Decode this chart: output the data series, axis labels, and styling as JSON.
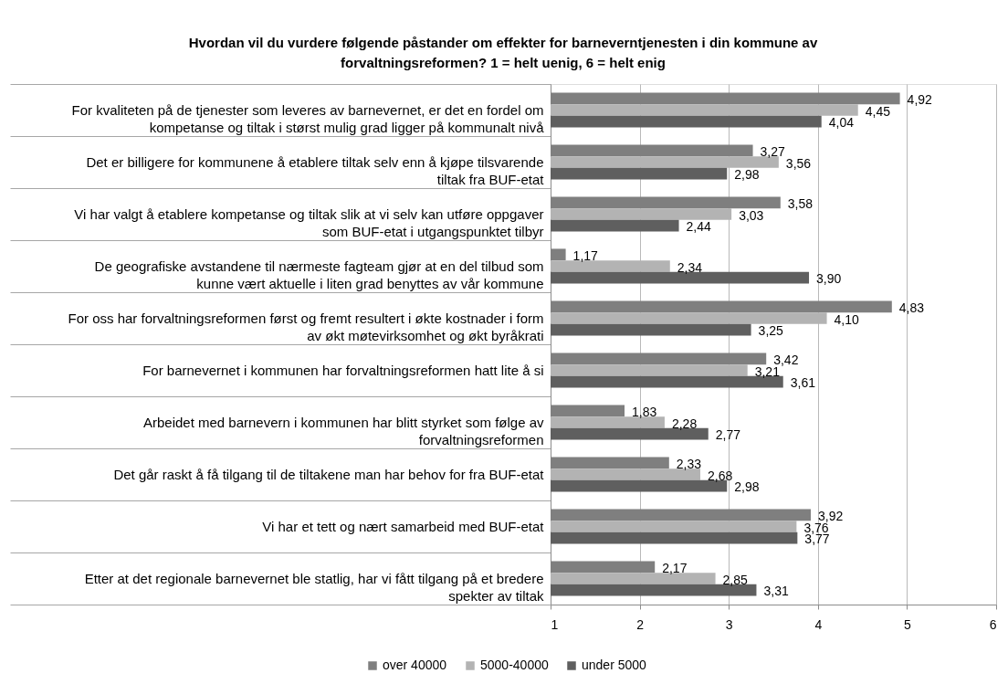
{
  "chart_data": {
    "type": "bar",
    "orientation": "horizontal",
    "title": "Hvordan vil du vurdere følgende påstander om effekter for barneverntjenesten i din kommune av forvaltningsreformen? 1 = helt uenig,  6 = helt enig",
    "categories": [
      "For kvaliteten på de tjenester som leveres av barnevernet, er det en fordel om kompetanse og tiltak i størst mulig grad ligger på kommunalt nivå",
      "Det er billigere for kommunene å etablere tiltak selv enn å kjøpe tilsvarende tiltak fra BUF-etat",
      "Vi har valgt å etablere kompetanse og tiltak slik at vi selv kan utføre oppgaver som BUF-etat i utgangspunktet tilbyr",
      "De geografiske avstandene til nærmeste fagteam gjør at en del tilbud som kunne vært aktuelle i liten grad benyttes av vår kommune",
      "For oss har forvaltningsreformen først og fremt resultert i økte kostnader i form av økt møtevirksomhet og økt byråkrati",
      "For barnevernet i kommunen har forvaltningsreformen hatt lite å si",
      "Arbeidet med barnevern i kommunen har blitt styrket som følge av forvaltningsreformen",
      "Det går raskt å få tilgang til de tiltakene man har behov for fra BUF-etat",
      "Vi har et tett og nært samarbeid med BUF-etat",
      "Etter at det regionale barnevernet ble statlig, har vi fått tilgang på et bredere spekter av tiltak"
    ],
    "series": [
      {
        "name": "over 40000",
        "color": "#7f7f7f",
        "values": [
          4.92,
          3.27,
          3.58,
          1.17,
          4.83,
          3.42,
          1.83,
          2.33,
          3.92,
          2.17
        ],
        "value_labels": [
          "4,92",
          "3,27",
          "3,58",
          "1,17",
          "4,83",
          "3,42",
          "1,83",
          "2,33",
          "3,92",
          "2,17"
        ]
      },
      {
        "name": "5000-40000",
        "color": "#b3b3b3",
        "values": [
          4.45,
          3.56,
          3.03,
          2.34,
          4.1,
          3.21,
          2.28,
          2.68,
          3.76,
          2.85
        ],
        "value_labels": [
          "4,45",
          "3,56",
          "3,03",
          "2,34",
          "4,10",
          "3,21",
          "2,28",
          "2,68",
          "3,76",
          "2,85"
        ]
      },
      {
        "name": "under 5000",
        "color": "#5f5f5f",
        "values": [
          4.04,
          2.98,
          2.44,
          3.9,
          3.25,
          3.61,
          2.77,
          2.98,
          3.77,
          3.31
        ],
        "value_labels": [
          "4,04",
          "2,98",
          "2,44",
          "3,90",
          "3,25",
          "3,61",
          "2,77",
          "2,98",
          "3,77",
          "3,31"
        ]
      }
    ],
    "xlim": [
      1,
      6
    ],
    "xticks": [
      1,
      2,
      3,
      4,
      5,
      6
    ],
    "grid": "x",
    "legend": "bottom"
  }
}
